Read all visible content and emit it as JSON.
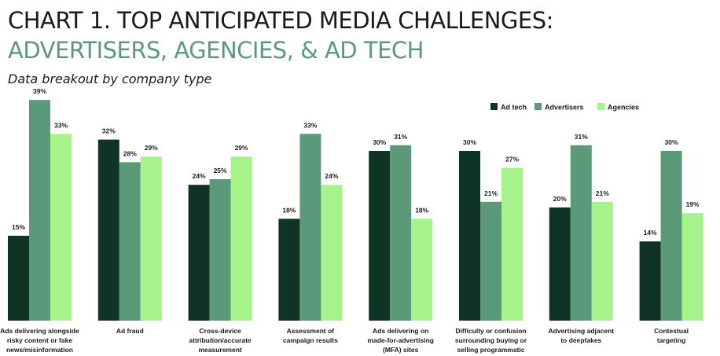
{
  "header": {
    "title_line1": "CHART 1. TOP ANTICIPATED MEDIA CHALLENGES:",
    "title_line2": "ADVERTISERS, AGENCIES, & AD TECH",
    "subtitle": "Data breakout by company type"
  },
  "colors": {
    "title_accent": "#5b9a78",
    "ad_tech": "#0f3324",
    "advertisers": "#5b9a78",
    "agencies": "#a6f28b"
  },
  "chart_data": {
    "type": "bar",
    "title": "CHART 1. TOP ANTICIPATED MEDIA CHALLENGES: ADVERTISERS, AGENCIES, & AD TECH",
    "subtitle": "Data breakout by company type",
    "legend_position": "top-right",
    "grid": false,
    "ylim": [
      0,
      40
    ],
    "value_suffix": "%",
    "categories": [
      [
        "Ads delivering alongside",
        "risky content or fake",
        "news/misinformation"
      ],
      [
        "Ad fraud"
      ],
      [
        "Cross-device",
        "attribution/accurate",
        "measurement"
      ],
      [
        "Assessment of",
        "campaign results"
      ],
      [
        "Ads delivering on",
        "made-for-advertising",
        "(MFA) sites"
      ],
      [
        "Difficulty or confusion",
        "surrounding buying or",
        "selling programmatic"
      ],
      [
        "Advertising adjacent",
        "to deepfakes"
      ],
      [
        "Contextual",
        "targeting"
      ]
    ],
    "series": [
      {
        "name": "Ad tech",
        "color": "#0f3324",
        "values": [
          15,
          32,
          24,
          18,
          30,
          30,
          20,
          14
        ]
      },
      {
        "name": "Advertisers",
        "color": "#5b9a78",
        "values": [
          39,
          28,
          25,
          33,
          31,
          21,
          31,
          30
        ]
      },
      {
        "name": "Agencies",
        "color": "#a6f28b",
        "values": [
          33,
          29,
          29,
          24,
          18,
          27,
          21,
          19
        ]
      }
    ]
  }
}
